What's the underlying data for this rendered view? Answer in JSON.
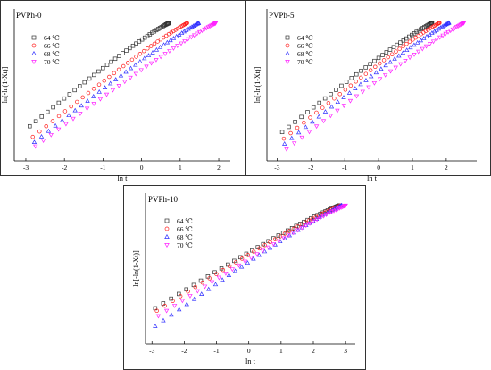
{
  "chart_data": [
    {
      "type": "scatter",
      "title": "PVPh-0",
      "xlabel": "ln t",
      "ylabel": "ln[-ln(1-Xt)]",
      "xlim": [
        -3.3,
        2.3
      ],
      "ylim": [
        -4.3,
        1.4
      ],
      "xticks": [
        -3,
        -2,
        -1,
        0,
        1,
        2
      ],
      "legend": "top-left",
      "series": [
        {
          "name": "64 ℃",
          "marker": "square",
          "color": "#333333",
          "x_start": -2.9,
          "x_end": 0.7,
          "y_start": -3.0,
          "y_end": 1.05
        },
        {
          "name": "66 ℃",
          "marker": "circle",
          "color": "#ff2020",
          "x_start": -2.82,
          "x_end": 1.18,
          "y_start": -3.4,
          "y_end": 1.05
        },
        {
          "name": "68 ℃",
          "marker": "triangle-up",
          "color": "#3333ff",
          "x_start": -2.78,
          "x_end": 1.48,
          "y_start": -3.6,
          "y_end": 1.05
        },
        {
          "name": "70 ℃",
          "marker": "triangle-down",
          "color": "#ff22ff",
          "x_start": -2.75,
          "x_end": 1.92,
          "y_start": -3.75,
          "y_end": 1.05
        }
      ]
    },
    {
      "type": "scatter",
      "title": "PVPh-5",
      "xlabel": "ln t",
      "ylabel": "ln[-ln(1-Xt)]",
      "xlim": [
        -3.3,
        2.9
      ],
      "ylim": [
        -4.4,
        1.4
      ],
      "xticks": [
        -3,
        -2,
        -1,
        0,
        1,
        2
      ],
      "legend": "top-left",
      "series": [
        {
          "name": "64 ℃",
          "marker": "square",
          "color": "#333333",
          "x_start": -2.85,
          "x_end": 1.58,
          "y_start": -3.3,
          "y_end": 1.05
        },
        {
          "name": "66 ℃",
          "marker": "circle",
          "color": "#ff2020",
          "x_start": -2.8,
          "x_end": 1.8,
          "y_start": -3.55,
          "y_end": 1.05
        },
        {
          "name": "68 ℃",
          "marker": "triangle-up",
          "color": "#3333ff",
          "x_start": -2.78,
          "x_end": 2.08,
          "y_start": -3.75,
          "y_end": 1.05
        },
        {
          "name": "70 ℃",
          "marker": "triangle-down",
          "color": "#ff22ff",
          "x_start": -2.72,
          "x_end": 2.52,
          "y_start": -3.95,
          "y_end": 1.05
        }
      ]
    },
    {
      "type": "scatter",
      "title": "PVPh-10",
      "xlabel": "ln t",
      "ylabel": "ln[-ln(1-Xt)]",
      "xlim": [
        -3.2,
        3.3
      ],
      "ylim": [
        -4.5,
        1.4
      ],
      "xticks": [
        -3,
        -2,
        -1,
        0,
        1,
        2,
        3
      ],
      "legend": "top-left",
      "series": [
        {
          "name": "64 ℃",
          "marker": "square",
          "color": "#333333",
          "x_start": -2.9,
          "x_end": 2.8,
          "y_start": -3.1,
          "y_end": 1.1
        },
        {
          "name": "66 ℃",
          "marker": "circle",
          "color": "#ff2020",
          "x_start": -2.85,
          "x_end": 2.85,
          "y_start": -3.2,
          "y_end": 1.1
        },
        {
          "name": "68 ℃",
          "marker": "triangle-up",
          "color": "#3333ff",
          "x_start": -2.9,
          "x_end": 2.88,
          "y_start": -3.8,
          "y_end": 1.1
        },
        {
          "name": "70 ℃",
          "marker": "triangle-down",
          "color": "#ff22ff",
          "x_start": -2.8,
          "x_end": 3.0,
          "y_start": -3.4,
          "y_end": 1.1
        }
      ]
    }
  ]
}
